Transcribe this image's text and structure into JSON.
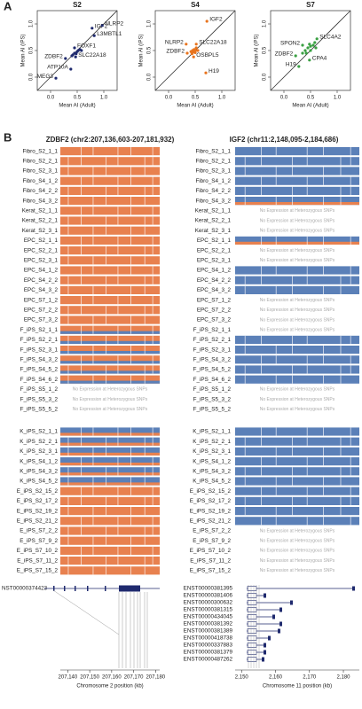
{
  "panel_labels": [
    "A",
    "B"
  ],
  "chart_data": [
    {
      "type": "scatter",
      "title": "S2",
      "x_label": "Mean AI (Adult)",
      "y_label": "Mean AI (iPS)",
      "color": "#1f2a6e",
      "x": [
        0.78,
        0.97,
        0.82,
        0.45,
        0.28,
        0.47,
        0.38,
        0.1,
        0.42,
        0.45,
        0.5,
        0.52,
        0.48,
        0.55,
        0.4,
        0.58
      ],
      "y": [
        0.92,
        0.97,
        0.78,
        0.55,
        0.35,
        0.38,
        0.15,
        -0.02,
        0.42,
        0.45,
        0.48,
        0.5,
        0.44,
        0.52,
        0.4,
        0.5
      ],
      "point_labels": [
        "IGF2",
        "NLRP2",
        "L3MBTL1",
        "FOXF1",
        "ZDBF2",
        "SLC22A18",
        "ATP10A",
        "MEG3",
        null,
        null,
        null,
        null,
        null,
        null,
        null,
        null
      ],
      "xlim": [
        -0.25,
        1.25
      ],
      "ylim": [
        -0.25,
        1.25
      ],
      "xticks": [
        {
          "value": 0,
          "label": "0.0"
        },
        {
          "value": 0.5,
          "label": "0.5"
        },
        {
          "value": 1,
          "label": "1.0"
        }
      ],
      "yticks": [
        {
          "value": 0,
          "label": "0.0"
        },
        {
          "value": 0.5,
          "label": "0.5"
        },
        {
          "value": 1,
          "label": "1.0"
        }
      ]
    },
    {
      "type": "scatter",
      "title": "S4",
      "x_label": "Mean AI (Adult)",
      "y_label": "Mean AI (iPS)",
      "color": "#e8741e",
      "x": [
        0.72,
        0.33,
        0.52,
        0.35,
        0.47,
        0.7,
        0.42,
        0.45,
        0.48,
        0.5,
        0.46,
        0.52,
        0.55,
        0.44,
        0.5
      ],
      "y": [
        1.05,
        0.62,
        0.62,
        0.45,
        0.38,
        0.08,
        0.48,
        0.5,
        0.52,
        0.5,
        0.47,
        0.55,
        0.5,
        0.44,
        0.46
      ],
      "point_labels": [
        "IGF2",
        "NLRP2",
        "SLC22A18",
        "ZDBF2",
        "OSBPL5",
        "H19",
        null,
        null,
        null,
        null,
        null,
        null,
        null,
        null,
        null
      ],
      "xlim": [
        -0.25,
        1.25
      ],
      "ylim": [
        -0.25,
        1.25
      ],
      "xticks": [
        {
          "value": 0,
          "label": "0.0"
        },
        {
          "value": 0.5,
          "label": "0.5"
        },
        {
          "value": 1,
          "label": "1.0"
        }
      ],
      "yticks": [
        {
          "value": 0,
          "label": "0.0"
        },
        {
          "value": 0.5,
          "label": "0.5"
        },
        {
          "value": 1,
          "label": "1.0"
        }
      ]
    },
    {
      "type": "scatter",
      "title": "S7",
      "x_label": "Mean AI (Adult)",
      "y_label": "Mean AI (iPS)",
      "color": "#3aa043",
      "x": [
        0.35,
        0.62,
        0.22,
        0.48,
        0.28,
        0.4,
        0.45,
        0.5,
        0.55,
        0.42,
        0.5,
        0.6,
        0.35,
        0.48,
        0.58
      ],
      "y": [
        0.6,
        0.72,
        0.4,
        0.32,
        0.2,
        0.5,
        0.55,
        0.58,
        0.6,
        0.45,
        0.5,
        0.55,
        0.45,
        0.62,
        0.65
      ],
      "point_labels": [
        "SPON2",
        "SLC4A2",
        "ZDBF2",
        "CPA4",
        "H19",
        null,
        null,
        null,
        null,
        null,
        null,
        null,
        null,
        null,
        null
      ],
      "xlim": [
        -0.25,
        1.25
      ],
      "ylim": [
        -0.25,
        1.25
      ],
      "xticks": [
        {
          "value": 0,
          "label": "0.0"
        },
        {
          "value": 0.5,
          "label": "0.5"
        },
        {
          "value": 1,
          "label": "1.0"
        }
      ],
      "yticks": [
        {
          "value": 0,
          "label": "0.0"
        },
        {
          "value": 0.5,
          "label": "0.5"
        },
        {
          "value": 1,
          "label": "1.0"
        }
      ]
    }
  ],
  "panel_b": {
    "no_expression_text": "No Expression at Heterozygous SNPs",
    "samples": [
      "Fibro_S2_1_1",
      "Fibro_S2_2_1",
      "Fibro_S2_3_1",
      "Fibro_S4_1_2",
      "Fibro_S4_2_2",
      "Fibro_S4_3_2",
      "Kerat_S2_1_1",
      "Kerat_S2_2_1",
      "Kerat_S2_3_1",
      "EPC_S2_1_1",
      "EPC_S2_2_1",
      "EPC_S2_3_1",
      "EPC_S4_1_2",
      "EPC_S4_2_2",
      "EPC_S4_3_2",
      "EPC_S7_1_2",
      "EPC_S7_2_2",
      "EPC_S7_3_2",
      "F_iPS_S2_1_1",
      "F_iPS_S2_2_1",
      "F_iPS_S2_3_1",
      "F_iPS_S4_3_2",
      "F_iPS_S4_5_2",
      "F_iPS_S4_6_2",
      "F_iPS_S5_1_2",
      "F_iPS_S5_3_2",
      "F_iPS_S5_5_2",
      "K_iPS_S2_1_1",
      "K_iPS_S2_2_1",
      "K_iPS_S2_3_1",
      "K_iPS_S4_1_2",
      "K_iPS_S4_3_2",
      "K_iPS_S4_5_2",
      "E_iPS_S2_15_2",
      "E_iPS_S2_17_2",
      "E_iPS_S2_19_2",
      "E_iPS_S2_21_2",
      "E_iPS_S7_2_2",
      "E_iPS_S7_9_2",
      "E_iPS_S7_10_2",
      "E_iPS_S7_11_2",
      "E_iPS_S7_15_2"
    ],
    "genes": [
      {
        "title": "ZDBF2 (chr2:207,136,603-207,181,932)",
        "row_colors": [
          [
            "#e8814f"
          ],
          [
            "#e8814f"
          ],
          [
            "#e8814f"
          ],
          [
            "#e8814f"
          ],
          [
            "#e8814f"
          ],
          [
            "#e8814f"
          ],
          [
            "#e8814f"
          ],
          [
            "#e8814f"
          ],
          [
            "#e8814f"
          ],
          [
            "#e8814f"
          ],
          [
            "#e8814f"
          ],
          [
            "#e8814f"
          ],
          [
            "#e8814f"
          ],
          [
            "#e8814f"
          ],
          [
            "#e8814f"
          ],
          [
            "#e8814f"
          ],
          [
            "#e8814f"
          ],
          [
            "#e8814f"
          ],
          [
            "#e8814f",
            "#5b80b8"
          ],
          [
            "#e8814f",
            "#5b80b8"
          ],
          [
            "#e8814f",
            "#5b80b8"
          ],
          [
            "#e8814f",
            "#5b80b8"
          ],
          [
            "#e8814f",
            "#5b80b8"
          ],
          [
            "#e8814f",
            "#5b80b8"
          ],
          null,
          null,
          null,
          [
            "#5b80b8",
            "#e8814f"
          ],
          [
            "#5b80b8",
            "#e8814f"
          ],
          [
            "#5b80b8",
            "#e8814f"
          ],
          [
            "#5b80b8",
            "#e8814f"
          ],
          [
            "#5b80b8",
            "#e8814f"
          ],
          [
            "#5b80b8",
            "#e8814f"
          ],
          [
            "#e8814f"
          ],
          [
            "#e8814f"
          ],
          [
            "#e8814f"
          ],
          [
            "#e8814f"
          ],
          [
            "#e8814f"
          ],
          [
            "#e8814f"
          ],
          [
            "#e8814f"
          ],
          [
            "#e8814f"
          ],
          [
            "#e8814f"
          ]
        ],
        "transcripts": [
          "NST00000374423"
        ],
        "x_label": "Chromosome 2 position (kb)",
        "xlim": [
          207136.6,
          207181.9
        ],
        "xticks": [
          {
            "value": 207140,
            "label": "207,140"
          },
          {
            "value": 207150,
            "label": "207,150"
          },
          {
            "value": 207160,
            "label": "207,160"
          },
          {
            "value": 207170,
            "label": "207,170"
          },
          {
            "value": 207180,
            "label": "207,180"
          }
        ]
      },
      {
        "title": "IGF2 (chr11:2,148,095-2,184,686)",
        "row_colors": [
          [
            "#5b80b8"
          ],
          [
            "#5b80b8"
          ],
          [
            "#5b80b8"
          ],
          [
            "#5b80b8"
          ],
          [
            "#5b80b8"
          ],
          [
            "#5b80b8",
            "#e8814f"
          ],
          null,
          null,
          null,
          [
            "#5b80b8",
            "#e8814f"
          ],
          null,
          null,
          [
            "#5b80b8"
          ],
          [
            "#5b80b8"
          ],
          [
            "#5b80b8"
          ],
          null,
          null,
          null,
          null,
          [
            "#5b80b8"
          ],
          [
            "#5b80b8"
          ],
          [
            "#5b80b8"
          ],
          [
            "#5b80b8"
          ],
          [
            "#5b80b8"
          ],
          null,
          null,
          null,
          [
            "#5b80b8"
          ],
          [
            "#5b80b8"
          ],
          [
            "#5b80b8"
          ],
          [
            "#5b80b8"
          ],
          [
            "#5b80b8"
          ],
          [
            "#5b80b8"
          ],
          [
            "#5b80b8"
          ],
          [
            "#5b80b8"
          ],
          [
            "#5b80b8"
          ],
          [
            "#5b80b8"
          ],
          null,
          null,
          null,
          null,
          null
        ],
        "transcripts": [
          "ENST00000381395",
          "ENST00000381406",
          "ENST00000300632",
          "ENST00000381315",
          "ENST00000434045",
          "ENST00000381392",
          "ENST00000381389",
          "ENST00000418738",
          "ENST00000337883",
          "ENST00000381379",
          "ENST00000487262"
        ],
        "x_label": "Chromosome 11 position (kb)",
        "xlim": [
          2148.1,
          2184.7
        ],
        "xticks": [
          {
            "value": 2150,
            "label": "2,150"
          },
          {
            "value": 2160,
            "label": "2,160"
          },
          {
            "value": 2170,
            "label": "2,170"
          },
          {
            "value": 2180,
            "label": "2,180"
          }
        ]
      }
    ]
  }
}
